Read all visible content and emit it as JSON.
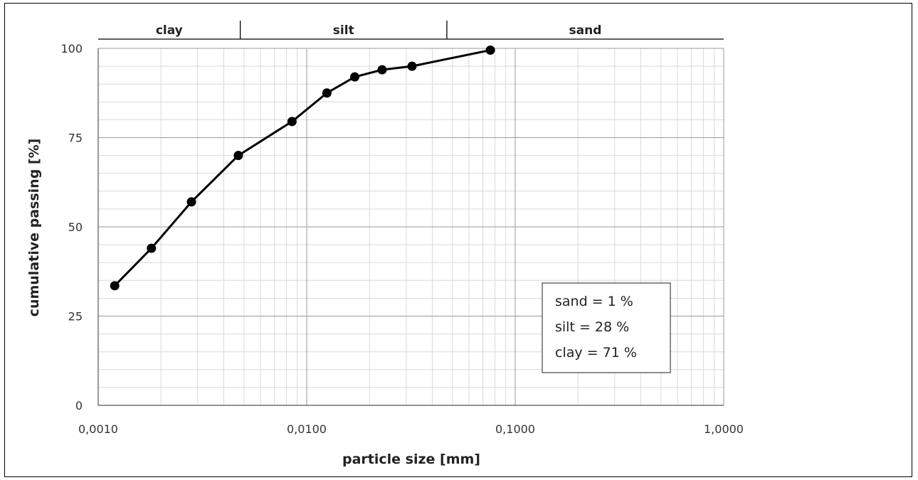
{
  "chart_data": {
    "type": "scatter",
    "title": "",
    "xlabel": "particle size [mm]",
    "ylabel": "cumulative passing [%]",
    "xscale": "log",
    "xlim": [
      0.001,
      1.0
    ],
    "ylim": [
      0,
      100
    ],
    "x_ticks": [
      0.001,
      0.01,
      0.1,
      1.0
    ],
    "x_tick_labels": [
      "0,0010",
      "0,0100",
      "0,1000",
      "1,0000"
    ],
    "y_ticks": [
      0,
      25,
      50,
      75,
      100
    ],
    "y_tick_labels": [
      "0",
      "25",
      "50",
      "75",
      "100"
    ],
    "grid": true,
    "legend": "none",
    "series": [
      {
        "x": [
          0.0012,
          0.0018,
          0.0028,
          0.0047,
          0.0085,
          0.0125,
          0.017,
          0.023,
          0.032,
          0.076
        ],
        "y": [
          33.5,
          44,
          57,
          70,
          79.5,
          87.5,
          92,
          94,
          95,
          99.5
        ],
        "color": "#000000"
      }
    ],
    "bands": [
      {
        "label": "clay",
        "from": 0.001,
        "to": 0.0048
      },
      {
        "label": "silt",
        "from": 0.0048,
        "to": 0.047
      },
      {
        "label": "sand",
        "from": 0.047,
        "to": 1.0
      }
    ],
    "annotation": {
      "lines": [
        "sand = 1 %",
        "silt = 28 %",
        "clay = 71 %"
      ],
      "placement": "bottom-right"
    }
  }
}
